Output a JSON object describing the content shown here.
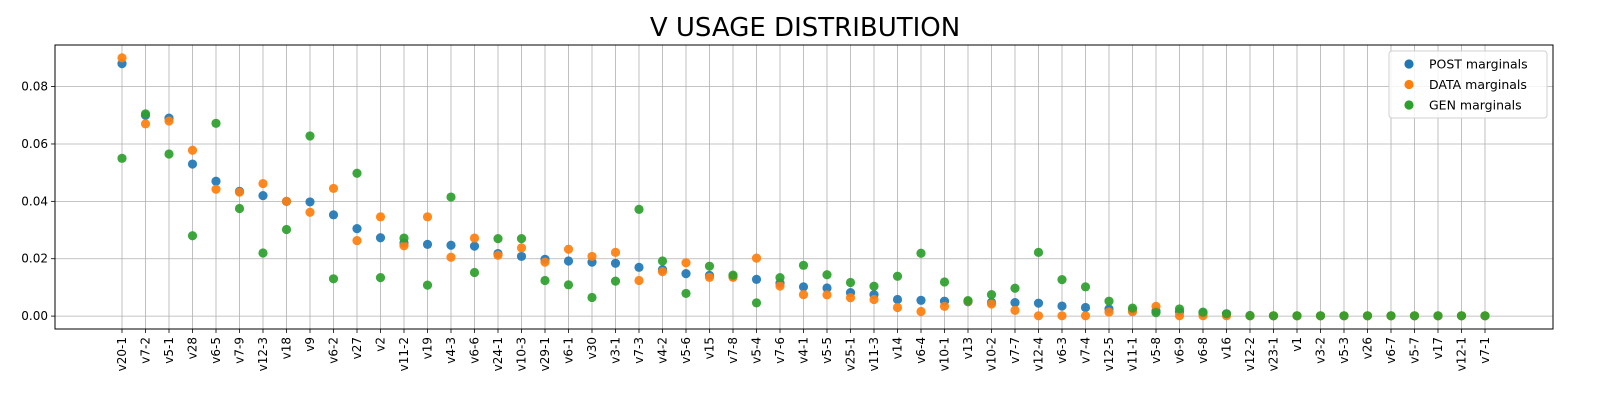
{
  "chart_data": {
    "type": "scatter",
    "title": "V USAGE DISTRIBUTION",
    "xlabel": "",
    "ylabel": "",
    "ylim": [
      -0.0045,
      0.0945
    ],
    "yticks": [
      0.0,
      0.02,
      0.04,
      0.06,
      0.08
    ],
    "ytick_labels": [
      "0.00",
      "0.02",
      "0.04",
      "0.06",
      "0.08"
    ],
    "grid": true,
    "legend_position": "top-right",
    "categories": [
      "v20-1",
      "v7-2",
      "v5-1",
      "v28",
      "v6-5",
      "v7-9",
      "v12-3",
      "v18",
      "v9",
      "v6-2",
      "v27",
      "v2",
      "v11-2",
      "v19",
      "v4-3",
      "v6-6",
      "v24-1",
      "v10-3",
      "v29-1",
      "v6-1",
      "v30",
      "v3-1",
      "v7-3",
      "v4-2",
      "v5-6",
      "v15",
      "v7-8",
      "v5-4",
      "v7-6",
      "v4-1",
      "v5-5",
      "v25-1",
      "v11-3",
      "v14",
      "v6-4",
      "v10-1",
      "v13",
      "v10-2",
      "v7-7",
      "v12-4",
      "v6-3",
      "v7-4",
      "v12-5",
      "v11-1",
      "v5-8",
      "v6-9",
      "v6-8",
      "v16",
      "v12-2",
      "v23-1",
      "v1",
      "v3-2",
      "v5-3",
      "v26",
      "v6-7",
      "v5-7",
      "v17",
      "v12-1",
      "v7-1"
    ],
    "series": [
      {
        "name": "POST marginals",
        "color": "#1f77b4",
        "values": [
          0.088,
          0.07,
          0.069,
          0.053,
          0.047,
          0.0435,
          0.042,
          0.04,
          0.0398,
          0.0353,
          0.0305,
          0.0273,
          0.0255,
          0.025,
          0.0247,
          0.0244,
          0.0218,
          0.0208,
          0.0198,
          0.0192,
          0.0188,
          0.0184,
          0.017,
          0.0162,
          0.0148,
          0.0142,
          0.0138,
          0.0128,
          0.0115,
          0.0102,
          0.0098,
          0.0082,
          0.0075,
          0.0058,
          0.0055,
          0.0052,
          0.005,
          0.0048,
          0.0047,
          0.0045,
          0.0035,
          0.003,
          0.0025,
          0.002,
          0.0018,
          0.0015,
          0.001,
          0.0008,
          0.0002,
          0.0001,
          0.0001,
          0.0001,
          0.0001,
          0.0001,
          0.0001,
          0.0001,
          0.0001,
          0.0001,
          0.0001
        ]
      },
      {
        "name": "DATA marginals",
        "color": "#ff7f0e",
        "values": [
          0.09,
          0.067,
          0.068,
          0.0578,
          0.0442,
          0.0432,
          0.0462,
          0.04,
          0.0362,
          0.0445,
          0.0263,
          0.0346,
          0.0245,
          0.0346,
          0.0205,
          0.0272,
          0.0212,
          0.0238,
          0.0188,
          0.0233,
          0.0208,
          0.0222,
          0.0124,
          0.0155,
          0.0186,
          0.0135,
          0.0135,
          0.0202,
          0.0105,
          0.0075,
          0.0074,
          0.0064,
          0.0058,
          0.003,
          0.0016,
          0.0034,
          0.0052,
          0.0042,
          0.002,
          0.0001,
          0.0001,
          0.0001,
          0.0014,
          0.0015,
          0.0034,
          0.0001,
          0.0001,
          0.0001,
          0.0001,
          0.0001,
          0.0001,
          0.0001,
          0.0001,
          0.0001,
          0.0001,
          0.0001,
          0.0001,
          0.0001,
          0.0001
        ]
      },
      {
        "name": "GEN marginals",
        "color": "#2ca02c",
        "values": [
          0.055,
          0.0705,
          0.0565,
          0.028,
          0.0672,
          0.0375,
          0.022,
          0.0302,
          0.0628,
          0.013,
          0.0498,
          0.0134,
          0.0272,
          0.0108,
          0.0415,
          0.0152,
          0.027,
          0.027,
          0.0124,
          0.0109,
          0.0065,
          0.0122,
          0.0372,
          0.0192,
          0.0079,
          0.0174,
          0.0143,
          0.0046,
          0.0134,
          0.0177,
          0.0144,
          0.0117,
          0.0104,
          0.0139,
          0.0219,
          0.0119,
          0.0054,
          0.0075,
          0.0097,
          0.0222,
          0.0127,
          0.0102,
          0.0052,
          0.0028,
          0.0012,
          0.0025,
          0.0014,
          0.0008,
          0.0001,
          0.0001,
          0.0001,
          0.0001,
          0.0001,
          0.0001,
          0.0001,
          0.0001,
          0.0001,
          0.0001,
          0.0001
        ]
      }
    ]
  }
}
